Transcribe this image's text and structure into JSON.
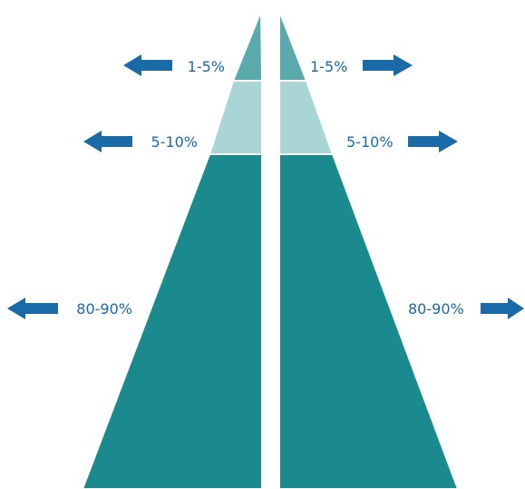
{
  "tiers": [
    {
      "label_left": "1-5%",
      "label_right": "1-5%"
    },
    {
      "label_left": "5-10%",
      "label_right": "5-10%"
    },
    {
      "label_left": "80-90%",
      "label_right": "80-90%"
    }
  ],
  "colors": {
    "top_tier": "#5aa9ac",
    "middle_tier": "#a9d5d6",
    "base_tier": "#1b8a8e",
    "arrow": "#1a6aa8",
    "label_text": "#1a6aa8"
  }
}
